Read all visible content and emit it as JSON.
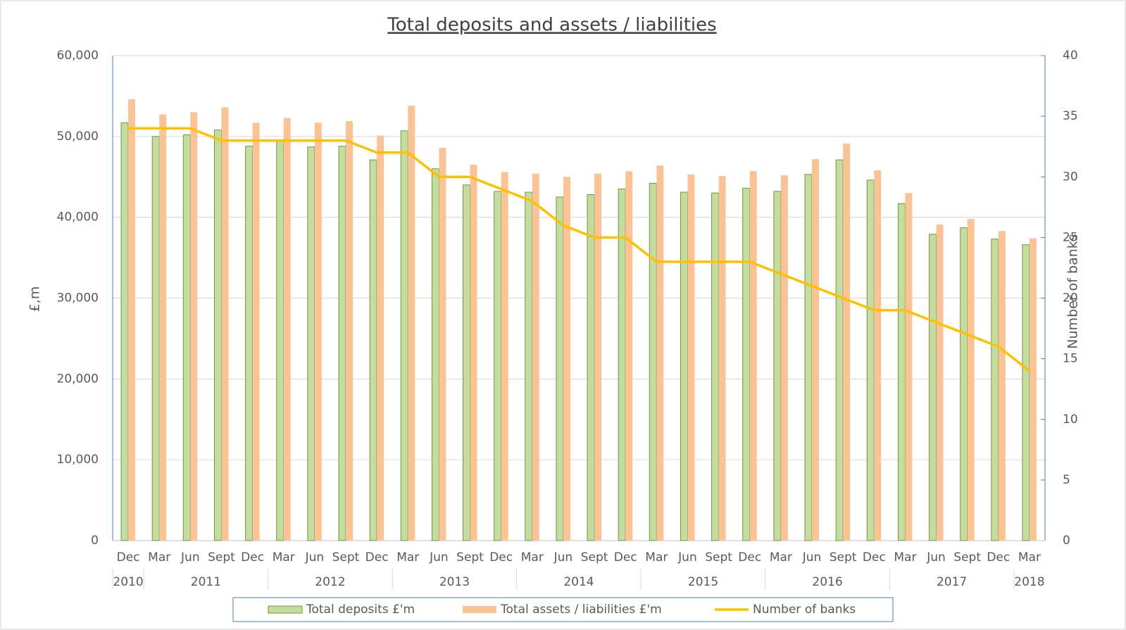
{
  "chart_data": {
    "type": "bar_line",
    "title": "Total deposits and assets / liabilities",
    "y_label": "£,m",
    "y2_label": "Number of banks",
    "categories": [
      "Dec",
      "Mar",
      "Jun",
      "Sept",
      "Dec",
      "Mar",
      "Jun",
      "Sept",
      "Dec",
      "Mar",
      "Jun",
      "Sept",
      "Dec",
      "Mar",
      "Jun",
      "Sept",
      "Dec",
      "Mar",
      "Jun",
      "Sept",
      "Dec",
      "Mar",
      "Jun",
      "Sept",
      "Dec",
      "Mar",
      "Jun",
      "Sept",
      "Dec",
      "Mar"
    ],
    "category_groups": [
      {
        "name": "2010",
        "count": 1
      },
      {
        "name": "2011",
        "count": 4
      },
      {
        "name": "2012",
        "count": 4
      },
      {
        "name": "2013",
        "count": 4
      },
      {
        "name": "2014",
        "count": 4
      },
      {
        "name": "2015",
        "count": 4
      },
      {
        "name": "2016",
        "count": 4
      },
      {
        "name": "2017",
        "count": 4
      },
      {
        "name": "2018",
        "count": 1
      }
    ],
    "series": [
      {
        "name": "Total deposits £'m",
        "type": "bar",
        "color": "#c5dca0",
        "stroke": "#70963a",
        "values": [
          51700,
          50000,
          50200,
          50800,
          48800,
          49500,
          48700,
          48800,
          47100,
          50700,
          46000,
          44000,
          43200,
          43100,
          42500,
          42800,
          43500,
          44200,
          43100,
          43000,
          43600,
          43200,
          45300,
          47100,
          44600,
          41700,
          37900,
          38700,
          37300,
          36600
        ]
      },
      {
        "name": "Total assets / liabilities £'m",
        "type": "bar",
        "color": "#f9c396",
        "values": [
          54600,
          52700,
          53000,
          53600,
          51700,
          52300,
          51700,
          51900,
          50100,
          53800,
          48600,
          46500,
          45600,
          45400,
          45000,
          45400,
          45700,
          46400,
          45300,
          45100,
          45700,
          45200,
          47200,
          49100,
          45800,
          43000,
          39100,
          39800,
          38300,
          37400
        ]
      },
      {
        "name": "Number of banks",
        "type": "line",
        "axis": "y2",
        "color": "#ffc000",
        "values": [
          34,
          34,
          34,
          33,
          33,
          33,
          33,
          33,
          32,
          32,
          30,
          30,
          29,
          28,
          26,
          25,
          25,
          23,
          23,
          23,
          23,
          22,
          21,
          20,
          19,
          19,
          18,
          17,
          16,
          14
        ]
      }
    ],
    "ylim": [
      0,
      60000
    ],
    "yticks": [
      0,
      {
        "value": 10000,
        "label": "10,000"
      },
      {
        "value": 20000,
        "label": "20,000"
      },
      {
        "value": 30000,
        "label": "30,000"
      },
      {
        "value": 40000,
        "label": "40,000"
      },
      {
        "value": 50000,
        "label": "50,000"
      },
      {
        "value": 60000,
        "label": "60,000"
      }
    ],
    "y2lim": [
      0,
      40
    ],
    "y2ticks": [
      0,
      5,
      10,
      15,
      20,
      25,
      30,
      35,
      40
    ],
    "grid": true,
    "legend": "bottom"
  }
}
